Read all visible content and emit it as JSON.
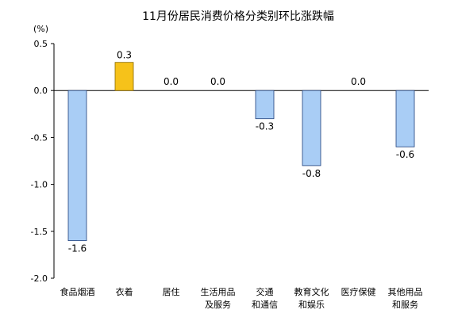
{
  "chart_data": {
    "type": "bar",
    "title": "11月份居民消费价格分类别环比涨跌幅",
    "ylabel": "(%)",
    "ylim": [
      -2.0,
      0.5
    ],
    "yticks": [
      "0.5",
      "0.0",
      "-0.5",
      "-1.0",
      "-1.5",
      "-2.0"
    ],
    "ytick_values": [
      0.5,
      0.0,
      -0.5,
      -1.0,
      -1.5,
      -2.0
    ],
    "categories": [
      [
        "食品烟酒"
      ],
      [
        "衣着"
      ],
      [
        "居住"
      ],
      [
        "生活用品",
        "及服务"
      ],
      [
        "交通",
        "和通信"
      ],
      [
        "教育文化",
        "和娱乐"
      ],
      [
        "医疗保健"
      ],
      [
        "其他用品",
        "和服务"
      ]
    ],
    "values": [
      -1.6,
      0.3,
      0.0,
      0.0,
      -0.3,
      -0.8,
      0.0,
      -0.6
    ],
    "value_labels": [
      "-1.6",
      "0.3",
      "0.0",
      "0.0",
      "-0.3",
      "-0.8",
      "0.0",
      "-0.6"
    ],
    "highlight_index": 1,
    "colors": {
      "bar": "#a9cdf5",
      "bar_stroke": "#1f3f7a",
      "highlight": "#f6c21a",
      "highlight_stroke": "#8a6a00",
      "axis": "#000000"
    },
    "grid": false,
    "legend": "none"
  }
}
